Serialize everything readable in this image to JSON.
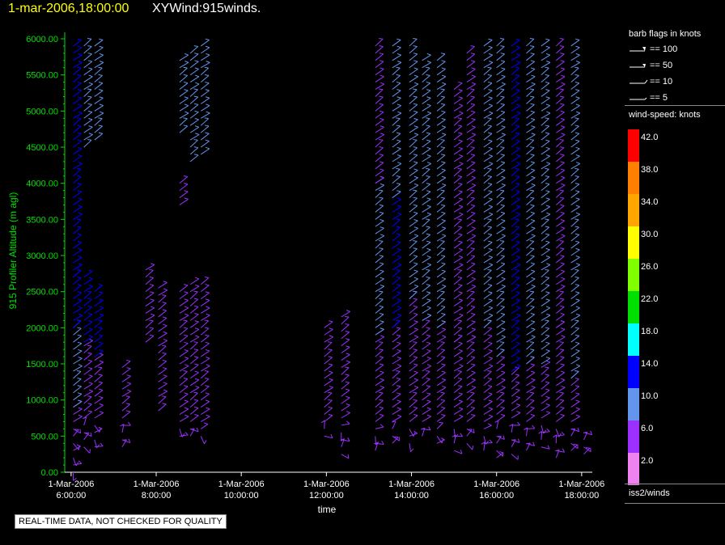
{
  "header": {
    "date": "1-mar-2006,18:00:00",
    "title": "XYWind:915winds."
  },
  "legend": {
    "flags_title": "barb flags in knots",
    "flags": [
      "== 100",
      "== 50",
      "== 10",
      "== 5"
    ],
    "speed_title": "wind-speed: knots",
    "colorbar": [
      {
        "label": "42.0",
        "color": "#ff0000"
      },
      {
        "label": "38.0",
        "color": "#ff7f00"
      },
      {
        "label": "34.0",
        "color": "#ffa500"
      },
      {
        "label": "30.0",
        "color": "#ffff00"
      },
      {
        "label": "26.0",
        "color": "#80ff00"
      },
      {
        "label": "22.0",
        "color": "#00e000"
      },
      {
        "label": "18.0",
        "color": "#00ffff"
      },
      {
        "label": "14.0",
        "color": "#0000ff"
      },
      {
        "label": "10.0",
        "color": "#6495ed"
      },
      {
        "label": "6.0",
        "color": "#9b30ff"
      },
      {
        "label": "2.0",
        "color": "#ee82ee"
      }
    ],
    "source": "iss2/winds"
  },
  "quality_note": "REAL-TIME DATA, NOT CHECKED FOR QUALITY",
  "chart_data": {
    "type": "scatter",
    "title": "",
    "xlabel": "time",
    "ylabel": "915 Profiler Altitude (m agl)",
    "xlim": [
      5.85,
      18.25
    ],
    "ylim": [
      0,
      6000
    ],
    "x_ticks": [
      {
        "value": 6,
        "line1": "1-Mar-2006",
        "line2": "6:00:00"
      },
      {
        "value": 8,
        "line1": "1-Mar-2006",
        "line2": "8:00:00"
      },
      {
        "value": 10,
        "line1": "1-Mar-2006",
        "line2": "10:00:00"
      },
      {
        "value": 12,
        "line1": "1-Mar-2006",
        "line2": "12:00:00"
      },
      {
        "value": 14,
        "line1": "1-Mar-2006",
        "line2": "14:00:00"
      },
      {
        "value": 16,
        "line1": "1-Mar-2006",
        "line2": "16:00:00"
      },
      {
        "value": 18,
        "line1": "1-Mar-2006",
        "line2": "18:00:00"
      }
    ],
    "y_ticks": [
      "0.00",
      "500.00",
      "1000.00",
      "1500.00",
      "2000.00",
      "2500.00",
      "3000.00",
      "3500.00",
      "4000.00",
      "4500.00",
      "5000.00",
      "5500.00",
      "6000.00"
    ],
    "grid": false,
    "profiles": [
      {
        "time": 6.05,
        "segments": [
          [
            0,
            900,
            5
          ],
          [
            900,
            2000,
            8
          ],
          [
            2000,
            2700,
            14
          ],
          [
            2700,
            5950,
            12
          ]
        ]
      },
      {
        "time": 6.3,
        "segments": [
          [
            350,
            1800,
            4
          ],
          [
            1800,
            2700,
            13
          ],
          [
            4500,
            5950,
            11
          ]
        ]
      },
      {
        "time": 6.55,
        "segments": [
          [
            350,
            1600,
            5
          ],
          [
            1600,
            2550,
            12
          ],
          [
            4600,
            5950,
            10
          ]
        ]
      },
      {
        "time": 7.2,
        "segments": [
          [
            350,
            1500,
            5
          ]
        ]
      },
      {
        "time": 7.75,
        "segments": [
          [
            1800,
            2800,
            7
          ]
        ]
      },
      {
        "time": 8.05,
        "segments": [
          [
            850,
            2600,
            6
          ]
        ]
      },
      {
        "time": 8.55,
        "segments": [
          [
            500,
            2500,
            5
          ],
          [
            3700,
            4000,
            7
          ],
          [
            4700,
            5700,
            9
          ]
        ]
      },
      {
        "time": 8.8,
        "segments": [
          [
            500,
            2600,
            5
          ],
          [
            4300,
            5800,
            8
          ]
        ]
      },
      {
        "time": 9.05,
        "segments": [
          [
            500,
            2600,
            6
          ],
          [
            4400,
            5950,
            8
          ]
        ]
      },
      {
        "time": 11.95,
        "segments": [
          [
            500,
            2000,
            5
          ]
        ]
      },
      {
        "time": 12.35,
        "segments": [
          [
            250,
            2200,
            5
          ]
        ]
      },
      {
        "time": 13.15,
        "segments": [
          [
            300,
            1900,
            5
          ],
          [
            1900,
            4000,
            9
          ],
          [
            4000,
            5950,
            7
          ]
        ]
      },
      {
        "time": 13.55,
        "segments": [
          [
            400,
            2000,
            6
          ],
          [
            2000,
            3800,
            12
          ],
          [
            3800,
            5950,
            10
          ]
        ]
      },
      {
        "time": 13.95,
        "segments": [
          [
            400,
            2400,
            5
          ],
          [
            2400,
            5900,
            11
          ]
        ]
      },
      {
        "time": 14.25,
        "segments": [
          [
            500,
            2100,
            5
          ],
          [
            2100,
            5700,
            10
          ]
        ]
      },
      {
        "time": 14.6,
        "segments": [
          [
            400,
            2000,
            5
          ],
          [
            2000,
            5700,
            9
          ]
        ]
      },
      {
        "time": 15.0,
        "segments": [
          [
            300,
            1800,
            5
          ],
          [
            1800,
            5300,
            7
          ]
        ]
      },
      {
        "time": 15.3,
        "segments": [
          [
            400,
            1800,
            5
          ],
          [
            1800,
            5800,
            7
          ]
        ]
      },
      {
        "time": 15.7,
        "segments": [
          [
            300,
            2000,
            5
          ],
          [
            2000,
            5950,
            8
          ]
        ]
      },
      {
        "time": 16.0,
        "segments": [
          [
            200,
            1600,
            5
          ],
          [
            1600,
            5950,
            10
          ]
        ]
      },
      {
        "time": 16.35,
        "segments": [
          [
            250,
            1400,
            6
          ],
          [
            1400,
            5950,
            12
          ]
        ]
      },
      {
        "time": 16.7,
        "segments": [
          [
            300,
            1500,
            5
          ],
          [
            1500,
            5950,
            9
          ]
        ]
      },
      {
        "time": 17.05,
        "segments": [
          [
            350,
            1500,
            5
          ],
          [
            1500,
            5950,
            11
          ]
        ]
      },
      {
        "time": 17.4,
        "segments": [
          [
            200,
            2000,
            6
          ],
          [
            2000,
            5950,
            7
          ]
        ]
      },
      {
        "time": 17.75,
        "segments": [
          [
            300,
            1300,
            5
          ],
          [
            1300,
            5950,
            10
          ]
        ]
      },
      {
        "time": 18.05,
        "segments": [
          [
            250,
            600,
            4
          ]
        ]
      }
    ]
  }
}
